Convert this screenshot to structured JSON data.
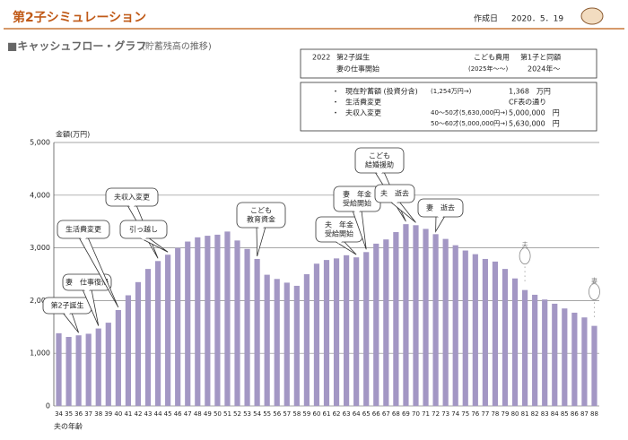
{
  "header": {
    "title": "第2子シミュレーション",
    "date_label": "作成日",
    "date": "2020．5．19"
  },
  "info_box": {
    "year": "2022",
    "event1": "第2子誕生",
    "event2": "妻の仕事開始",
    "cost_label": "こども費用",
    "cost_period": "(2025年〜〜)",
    "cost_value": "第1子と同額",
    "cost_start": "2024年〜"
  },
  "changes": {
    "rows": [
      [
        "・",
        "現在貯蓄額 (投資分含)",
        "(1,254万円→)",
        "1,368　万円"
      ],
      [
        "・",
        "生活費変更",
        "",
        "CF表の通り"
      ],
      [
        "・",
        "夫収入変更",
        "40〜50才(5,630,000円→)",
        "5,000,000　円"
      ],
      [
        "",
        "",
        "50〜60才(5,000,000円→)",
        "5,630,000　円"
      ]
    ]
  },
  "chart_data": {
    "type": "bar",
    "title": "■キャッシュフロー・グラフ",
    "subtitle": "(貯蓄残高の推移)",
    "y_label": "金額(万円)",
    "x_label": "夫の年齢",
    "color": "#a397c4",
    "grid": true,
    "categories": [
      "34",
      "35",
      "36",
      "37",
      "38",
      "39",
      "40",
      "41",
      "42",
      "43",
      "44",
      "45",
      "46",
      "47",
      "48",
      "49",
      "50",
      "51",
      "52",
      "53",
      "54",
      "55",
      "56",
      "57",
      "58",
      "59",
      "60",
      "61",
      "62",
      "63",
      "64",
      "65",
      "66",
      "67",
      "68",
      "69",
      "70",
      "71",
      "72",
      "73",
      "74",
      "75",
      "76",
      "77",
      "78",
      "79",
      "80",
      "81",
      "82",
      "83",
      "84",
      "85",
      "86",
      "87",
      "88"
    ],
    "values": [
      1380,
      1310,
      1340,
      1370,
      1470,
      1580,
      1820,
      2100,
      2350,
      2600,
      2750,
      2870,
      3000,
      3120,
      3200,
      3230,
      3250,
      3310,
      3140,
      2980,
      2790,
      2490,
      2410,
      2340,
      2280,
      2500,
      2700,
      2770,
      2800,
      2860,
      2820,
      2920,
      3080,
      3160,
      3300,
      3450,
      3430,
      3360,
      3260,
      3170,
      3050,
      2950,
      2880,
      2790,
      2740,
      2600,
      2420,
      2200,
      2110,
      2020,
      1940,
      1850,
      1770,
      1680,
      1520
    ],
    "ylim": [
      0,
      5000
    ],
    "yticks": [
      0,
      {
        "value": 1000,
        "label": "1,000"
      },
      {
        "value": 2000,
        "label": "2,000"
      },
      {
        "value": 3000,
        "label": "3,000"
      },
      {
        "value": 4000,
        "label": "4,000"
      },
      {
        "value": 5000,
        "label": "5,000"
      }
    ],
    "callouts": [
      [
        "第2子誕生"
      ],
      [
        "妻　仕事復帰"
      ],
      [
        "生活費変更"
      ],
      [
        "夫収入変更"
      ],
      [
        "引っ越し"
      ],
      [
        "こども",
        "教育資金"
      ],
      [
        "夫　年金",
        "受給開始"
      ],
      [
        "妻　年金",
        "受給開始"
      ],
      [
        "こども",
        "結婚援助"
      ],
      [
        "夫　逝去"
      ],
      [
        "妻　逝去"
      ]
    ],
    "markers": [
      "夫",
      "妻"
    ]
  }
}
